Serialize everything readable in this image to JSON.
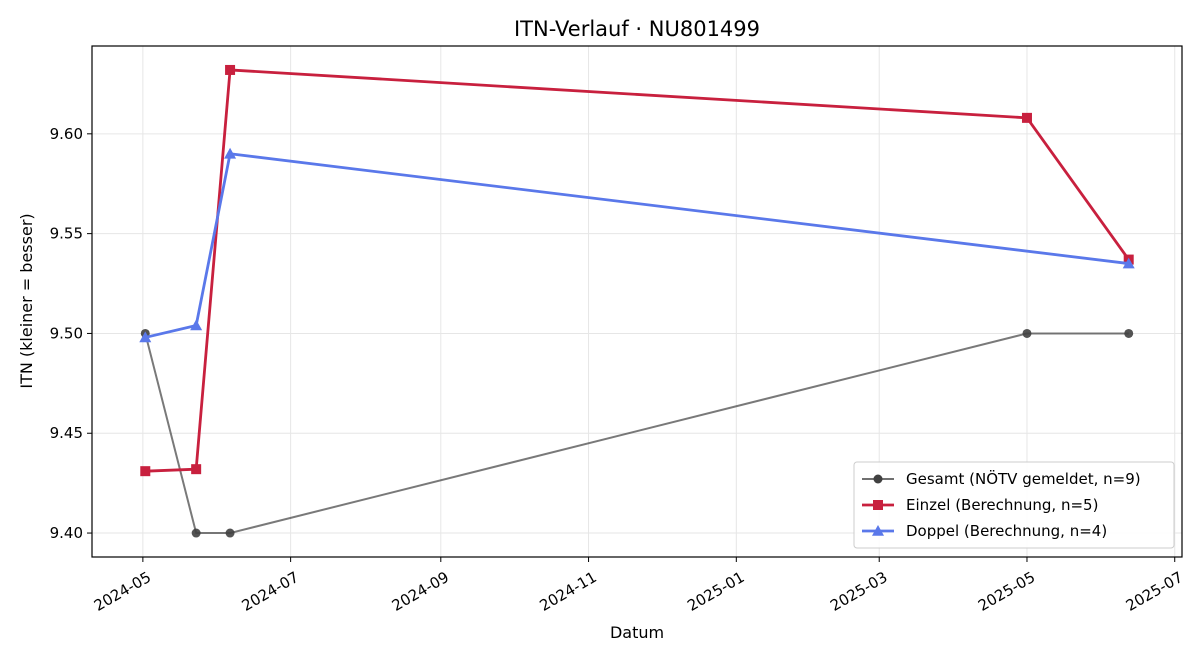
{
  "chart_data": {
    "type": "line",
    "title": "ITN-Verlauf · NU801499",
    "xlabel": "Datum",
    "ylabel": "ITN  (kleiner = besser)",
    "x_type": "date",
    "xlim": [
      "2024-04-10",
      "2025-07-04"
    ],
    "ylim": [
      9.388,
      9.644
    ],
    "x_ticks": [
      "2024-05-01",
      "2024-07-01",
      "2024-09-01",
      "2024-11-01",
      "2025-01-01",
      "2025-03-01",
      "2025-05-01",
      "2025-07-01"
    ],
    "x_tick_labels": [
      "2024-05",
      "2024-07",
      "2024-09",
      "2024-11",
      "2025-01",
      "2025-03",
      "2025-05",
      "2025-07"
    ],
    "y_ticks": [
      9.4,
      9.45,
      9.5,
      9.55,
      9.6
    ],
    "y_tick_labels": [
      "9.40",
      "9.45",
      "9.50",
      "9.55",
      "9.60"
    ],
    "grid": true,
    "legend_position": "bottom-right",
    "series": [
      {
        "name": "Gesamt (NÖTV gemeldet, n=9)",
        "color": "#404040",
        "marker": "circle",
        "x": [
          "2024-05-02",
          "2024-05-23",
          "2024-06-06",
          "2025-05-01",
          "2025-06-12"
        ],
        "y": [
          9.5,
          9.4,
          9.4,
          9.5,
          9.5
        ]
      },
      {
        "name": "Einzel (Berechnung, n=5)",
        "color": "#c8203e",
        "marker": "square",
        "x": [
          "2024-05-02",
          "2024-05-23",
          "2024-06-06",
          "2025-05-01",
          "2025-06-12"
        ],
        "y": [
          9.431,
          9.432,
          9.632,
          9.608,
          9.537
        ]
      },
      {
        "name": "Doppel (Berechnung, n=4)",
        "color": "#5a78ea",
        "marker": "triangle",
        "x": [
          "2024-05-02",
          "2024-05-23",
          "2024-06-06",
          "2025-06-12"
        ],
        "y": [
          9.498,
          9.504,
          9.59,
          9.535
        ]
      }
    ]
  }
}
